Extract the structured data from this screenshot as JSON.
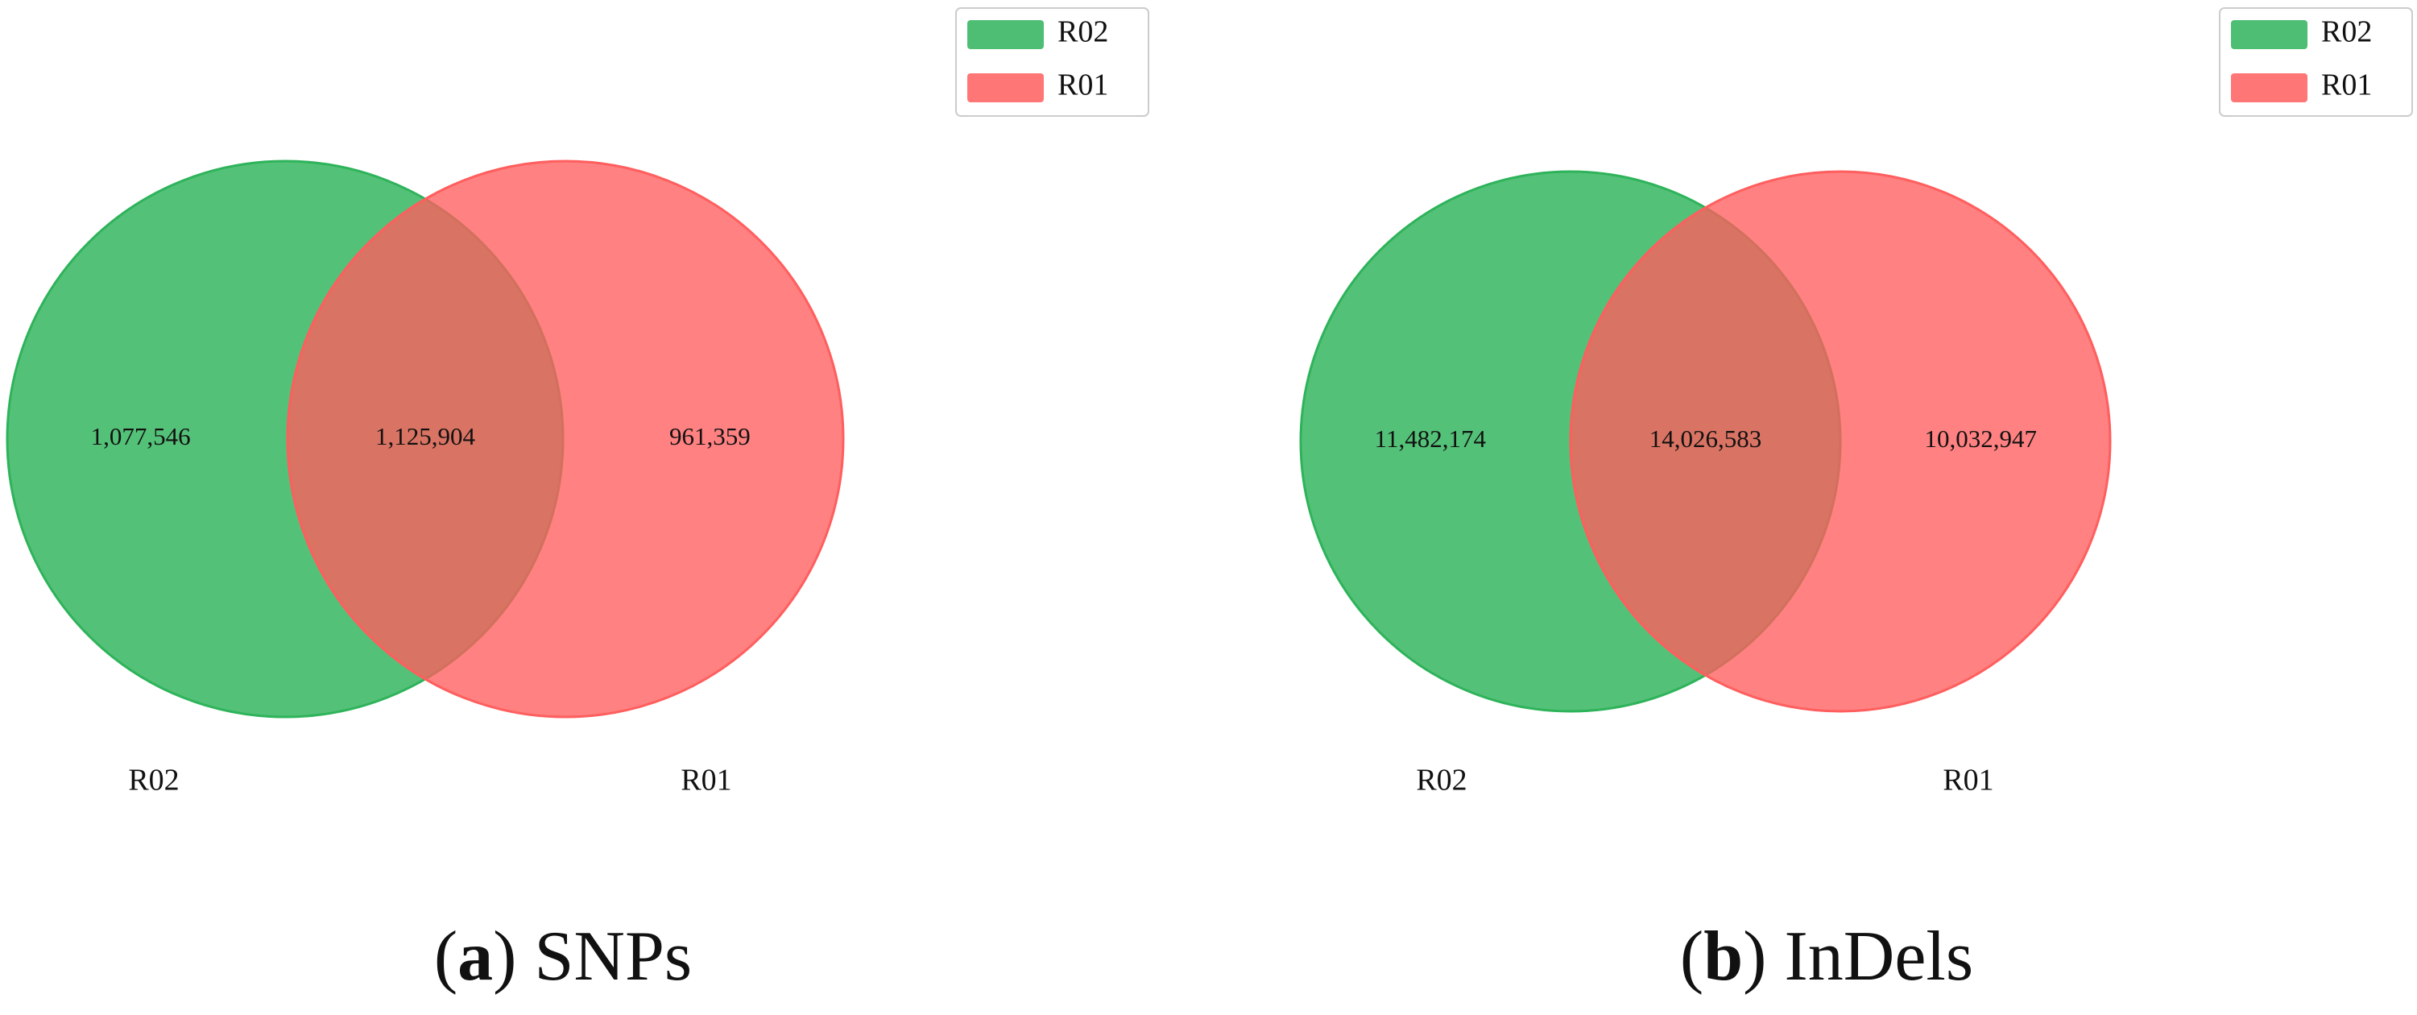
{
  "chart_data": [
    {
      "type": "venn",
      "caption_parts": [
        "(",
        "a",
        ") SNPs"
      ],
      "sets": [
        {
          "name": "R02",
          "color": "#2eb35a"
        },
        {
          "name": "R01",
          "color": "#ff5e5e"
        }
      ],
      "values": [
        1077546,
        1125904,
        961359
      ],
      "value_labels": [
        "1,077,546",
        "1,125,904",
        "961,359"
      ]
    },
    {
      "type": "venn",
      "caption_parts": [
        "(",
        "b",
        ") InDels"
      ],
      "sets": [
        {
          "name": "R02",
          "color": "#2eb35a"
        },
        {
          "name": "R01",
          "color": "#ff5e5e"
        }
      ],
      "values": [
        11482174,
        14026583,
        10032947
      ],
      "value_labels": [
        "11,482,174",
        "14,026,583",
        "10,032,947"
      ]
    }
  ]
}
